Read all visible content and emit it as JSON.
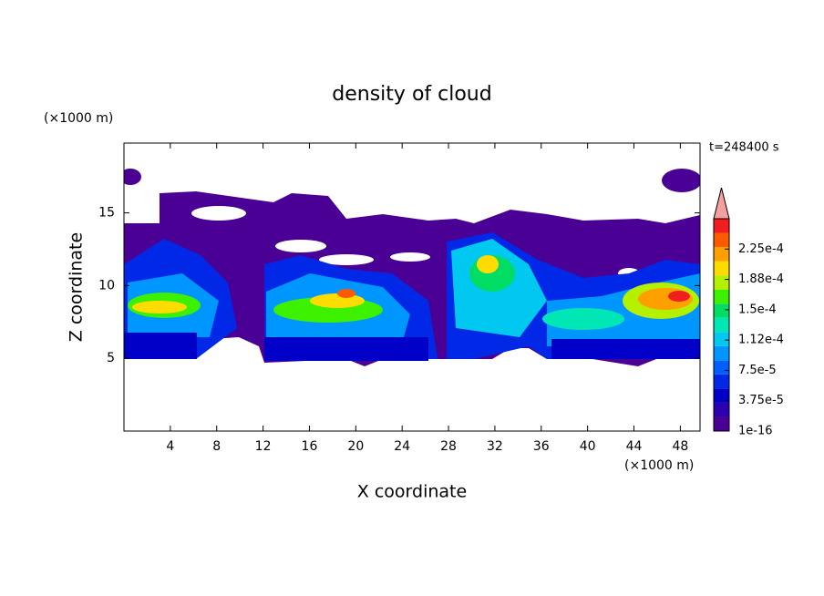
{
  "chart_data": {
    "type": "contour",
    "title": "density of cloud",
    "xlabel": "X coordinate",
    "ylabel": "Z coordinate",
    "x_unit": "(×1000 m)",
    "y_unit": "(×1000 m)",
    "time_label": "t=248400 s",
    "xlim": [
      0,
      49.7
    ],
    "ylim": [
      0,
      19.8
    ],
    "xticks": [
      4,
      8,
      12,
      16,
      20,
      24,
      28,
      32,
      36,
      40,
      44,
      48
    ],
    "yticks": [
      5,
      10,
      15
    ],
    "colorbar": {
      "clim": [
        0,
        0.0002625
      ],
      "colors": [
        "#4b0095",
        "#2a00b0",
        "#0000c8",
        "#0028e6",
        "#0060ff",
        "#0096ff",
        "#00c8f0",
        "#00e6b4",
        "#00dc64",
        "#3cf000",
        "#b4f000",
        "#ffdc00",
        "#ffa000",
        "#ff5a00",
        "#f01e1e"
      ],
      "extend_color": "#f5a0a0",
      "ticks": [
        {
          "value": 1e-16,
          "label": "1e-16"
        },
        {
          "value": 3.75e-05,
          "label": "3.75e-5"
        },
        {
          "value": 7.5e-05,
          "label": "7.5e-5"
        },
        {
          "value": 0.0001125,
          "label": "1.12e-4"
        },
        {
          "value": 0.00015,
          "label": "1.5e-4"
        },
        {
          "value": 0.0001875,
          "label": "1.88e-4"
        },
        {
          "value": 0.000225,
          "label": "2.25e-4"
        }
      ]
    }
  }
}
